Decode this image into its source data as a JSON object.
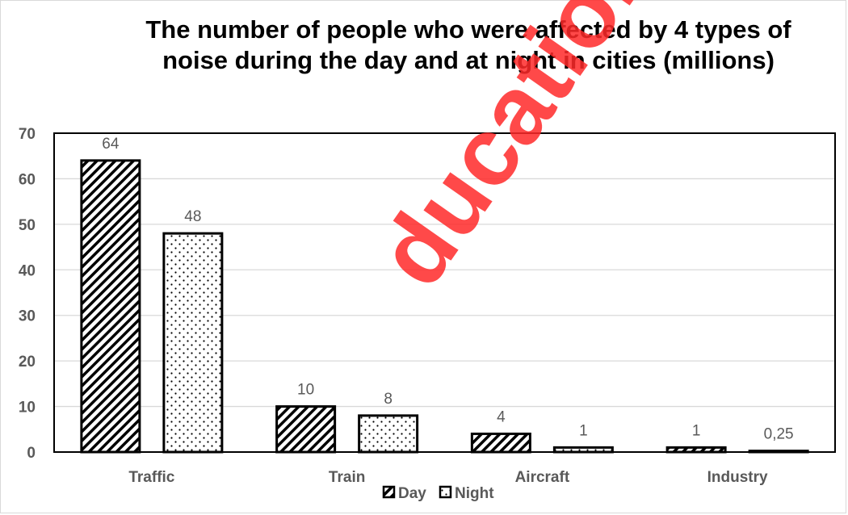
{
  "chart_data": {
    "type": "bar",
    "title_line1": "The number of people who were affected by 4 types of",
    "title_line2": "noise during the day and at night in cities (millions)",
    "categories": [
      "Traffic",
      "Train",
      "Aircraft",
      "Industry"
    ],
    "series": [
      {
        "name": "Day",
        "pattern": "diagonal-hatch",
        "values": [
          64,
          10,
          4,
          1
        ],
        "labels": [
          "64",
          "10",
          "4",
          "1"
        ]
      },
      {
        "name": "Night",
        "pattern": "dots",
        "values": [
          48,
          8,
          1,
          0.25
        ],
        "labels": [
          "48",
          "8",
          "1",
          "0,25"
        ]
      }
    ],
    "ylim": [
      0,
      70
    ],
    "yticks": [
      0,
      10,
      20,
      30,
      40,
      50,
      60,
      70
    ],
    "grid": true,
    "legend_position": "bottom",
    "colors": {
      "bar_stroke": "#000000",
      "grid": "#d9d9d9",
      "text": "#595959",
      "watermark": "#ff2a2a"
    }
  },
  "watermark": {
    "text": "ducation"
  }
}
